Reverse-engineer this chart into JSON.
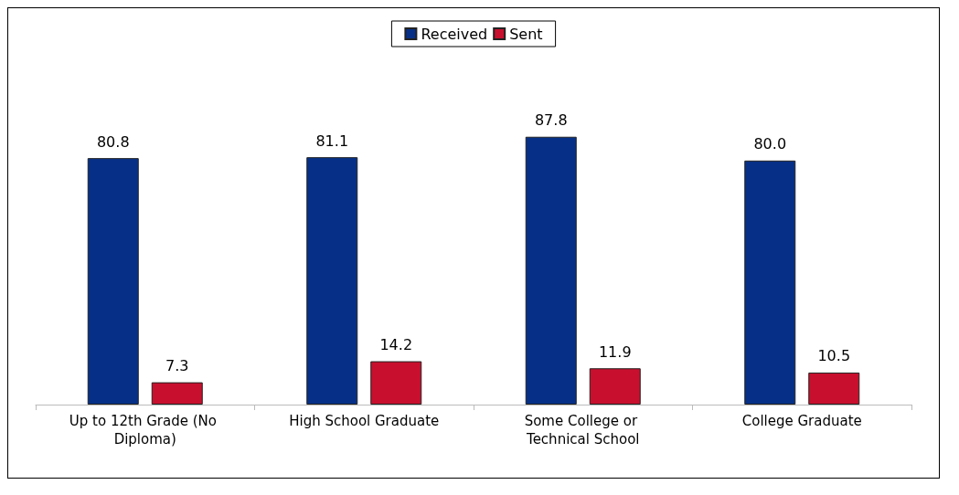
{
  "chart_data": {
    "type": "bar",
    "categories": [
      "Up to 12th Grade (No Diploma)",
      "High School Graduate",
      "Some College or Technical School",
      "College Graduate"
    ],
    "series": [
      {
        "name": "Received",
        "color": "#063087",
        "values": [
          80.8,
          81.1,
          87.8,
          80.0
        ],
        "value_labels": [
          "80.8",
          "81.1",
          "87.8",
          "80.0"
        ]
      },
      {
        "name": "Sent",
        "color": "#c8102e",
        "values": [
          7.3,
          14.2,
          11.9,
          10.5
        ],
        "value_labels": [
          "7.3",
          "14.2",
          "11.9",
          "10.5"
        ]
      }
    ],
    "legend": "top"
  }
}
